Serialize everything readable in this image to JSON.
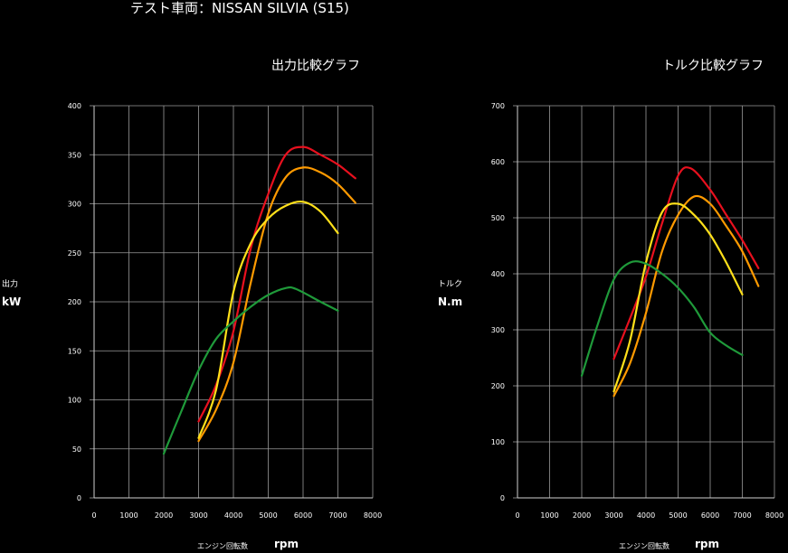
{
  "header": {
    "vehicle": "テスト車両：NISSAN SILVIA (S15)"
  },
  "colors": {
    "background": "#000000",
    "grid": "#9a9a9a",
    "red": "#e8101e",
    "orange": "#ff9a00",
    "yellow": "#ffe01a",
    "green": "#1f9a3a"
  },
  "chart_data": [
    {
      "type": "line",
      "title": "出力比較グラフ",
      "ylabel_small": "出力",
      "ylabel_unit": "kW",
      "xlabel_small": "エンジン回転数",
      "xlabel_unit": "rpm",
      "xlim": [
        0,
        8000
      ],
      "ylim": [
        0,
        400
      ],
      "xticks": [
        0,
        1000,
        2000,
        3000,
        4000,
        5000,
        6000,
        7000,
        8000
      ],
      "yticks": [
        0,
        50,
        100,
        150,
        200,
        250,
        300,
        350,
        400
      ],
      "grid": true,
      "series": [
        {
          "color": "red",
          "points": [
            [
              3000,
              78
            ],
            [
              3500,
              115
            ],
            [
              4000,
              170
            ],
            [
              4500,
              255
            ],
            [
              5000,
              310
            ],
            [
              5500,
              350
            ],
            [
              6000,
              358
            ],
            [
              6500,
              350
            ],
            [
              7000,
              340
            ],
            [
              7500,
              326
            ]
          ]
        },
        {
          "color": "orange",
          "points": [
            [
              3000,
              58
            ],
            [
              3500,
              90
            ],
            [
              4000,
              138
            ],
            [
              4500,
              220
            ],
            [
              5000,
              290
            ],
            [
              5500,
              327
            ],
            [
              6000,
              337
            ],
            [
              6500,
              332
            ],
            [
              7000,
              320
            ],
            [
              7500,
              301
            ]
          ]
        },
        {
          "color": "yellow",
          "points": [
            [
              3000,
              61
            ],
            [
              3500,
              110
            ],
            [
              4000,
              210
            ],
            [
              4500,
              260
            ],
            [
              5000,
              285
            ],
            [
              5500,
              298
            ],
            [
              6000,
              302
            ],
            [
              6500,
              292
            ],
            [
              7000,
              270
            ]
          ]
        },
        {
          "color": "green",
          "points": [
            [
              2000,
              45
            ],
            [
              2500,
              88
            ],
            [
              3000,
              130
            ],
            [
              3500,
              162
            ],
            [
              4000,
              180
            ],
            [
              4500,
              195
            ],
            [
              5000,
              207
            ],
            [
              5500,
              214
            ],
            [
              5800,
              213
            ],
            [
              6500,
              200
            ],
            [
              7000,
              191
            ]
          ]
        }
      ]
    },
    {
      "type": "line",
      "title": "トルク比較グラフ",
      "ylabel_small": "トルク",
      "ylabel_unit": "N.m",
      "xlabel_small": "エンジン回転数",
      "xlabel_unit": "rpm",
      "xlim": [
        0,
        8000
      ],
      "ylim": [
        0,
        700
      ],
      "xticks": [
        0,
        1000,
        2000,
        3000,
        4000,
        5000,
        6000,
        7000,
        8000
      ],
      "yticks": [
        0,
        100,
        200,
        300,
        400,
        500,
        600,
        700
      ],
      "grid": true,
      "series": [
        {
          "color": "red",
          "points": [
            [
              3000,
              248
            ],
            [
              3500,
              320
            ],
            [
              4000,
              395
            ],
            [
              4500,
              490
            ],
            [
              5000,
              575
            ],
            [
              5400,
              588
            ],
            [
              6000,
              550
            ],
            [
              6500,
              505
            ],
            [
              7000,
              460
            ],
            [
              7500,
              410
            ]
          ]
        },
        {
          "color": "orange",
          "points": [
            [
              3000,
              182
            ],
            [
              3500,
              240
            ],
            [
              4000,
              330
            ],
            [
              4500,
              440
            ],
            [
              5000,
              505
            ],
            [
              5500,
              538
            ],
            [
              6000,
              525
            ],
            [
              6500,
              485
            ],
            [
              7000,
              440
            ],
            [
              7500,
              378
            ]
          ]
        },
        {
          "color": "yellow",
          "points": [
            [
              3000,
              190
            ],
            [
              3500,
              280
            ],
            [
              4000,
              420
            ],
            [
              4500,
              510
            ],
            [
              5000,
              525
            ],
            [
              5500,
              505
            ],
            [
              6000,
              470
            ],
            [
              6500,
              420
            ],
            [
              7000,
              363
            ]
          ]
        },
        {
          "color": "green",
          "points": [
            [
              2000,
              218
            ],
            [
              2500,
              310
            ],
            [
              3000,
              390
            ],
            [
              3500,
              420
            ],
            [
              4000,
              418
            ],
            [
              4500,
              400
            ],
            [
              5000,
              375
            ],
            [
              5500,
              340
            ],
            [
              6000,
              295
            ],
            [
              6500,
              272
            ],
            [
              7000,
              255
            ]
          ]
        }
      ]
    }
  ]
}
